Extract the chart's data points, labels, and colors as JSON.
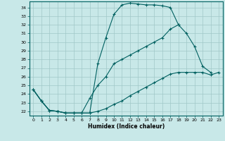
{
  "xlabel": "Humidex (Indice chaleur)",
  "bg_color": "#c8e8e8",
  "grid_color": "#a0c8c8",
  "line_color": "#006060",
  "xlim": [
    -0.5,
    23.5
  ],
  "ylim": [
    21.5,
    34.7
  ],
  "yticks": [
    22,
    23,
    24,
    25,
    26,
    27,
    28,
    29,
    30,
    31,
    32,
    33,
    34
  ],
  "xticks": [
    0,
    1,
    2,
    3,
    4,
    5,
    6,
    7,
    8,
    9,
    10,
    11,
    12,
    13,
    14,
    15,
    16,
    17,
    18,
    19,
    20,
    21,
    22,
    23
  ],
  "line1_x": [
    0,
    1,
    2,
    3,
    4,
    5,
    6,
    7,
    8,
    9,
    10,
    11,
    12,
    13,
    14,
    15,
    16,
    17,
    18,
    19,
    20,
    21,
    22,
    23
  ],
  "line1_y": [
    24.5,
    23.2,
    22.1,
    22.0,
    21.8,
    21.8,
    21.8,
    21.8,
    27.5,
    30.5,
    33.2,
    34.3,
    34.5,
    34.4,
    34.3,
    34.3,
    34.2,
    34.0,
    32.0,
    null,
    null,
    null,
    null,
    null
  ],
  "line2_x": [
    0,
    1,
    2,
    3,
    4,
    5,
    6,
    7,
    8,
    9,
    10,
    11,
    12,
    13,
    14,
    15,
    16,
    17,
    18,
    19,
    20,
    21,
    22,
    23
  ],
  "line2_y": [
    24.5,
    23.2,
    22.1,
    22.0,
    21.8,
    21.8,
    21.8,
    23.5,
    25.0,
    26.0,
    27.5,
    28.0,
    28.5,
    29.0,
    29.5,
    30.0,
    30.5,
    31.5,
    32.0,
    31.0,
    29.5,
    27.2,
    26.5,
    null
  ],
  "line3_x": [
    0,
    1,
    2,
    3,
    4,
    5,
    6,
    7,
    8,
    9,
    10,
    11,
    12,
    13,
    14,
    15,
    16,
    17,
    18,
    19,
    20,
    21,
    22,
    23
  ],
  "line3_y": [
    24.5,
    23.2,
    22.1,
    22.0,
    21.8,
    21.8,
    21.8,
    21.8,
    22.0,
    22.3,
    22.8,
    23.2,
    23.8,
    24.3,
    24.8,
    25.3,
    25.8,
    26.3,
    26.5,
    26.5,
    26.5,
    26.5,
    26.2,
    26.5
  ]
}
